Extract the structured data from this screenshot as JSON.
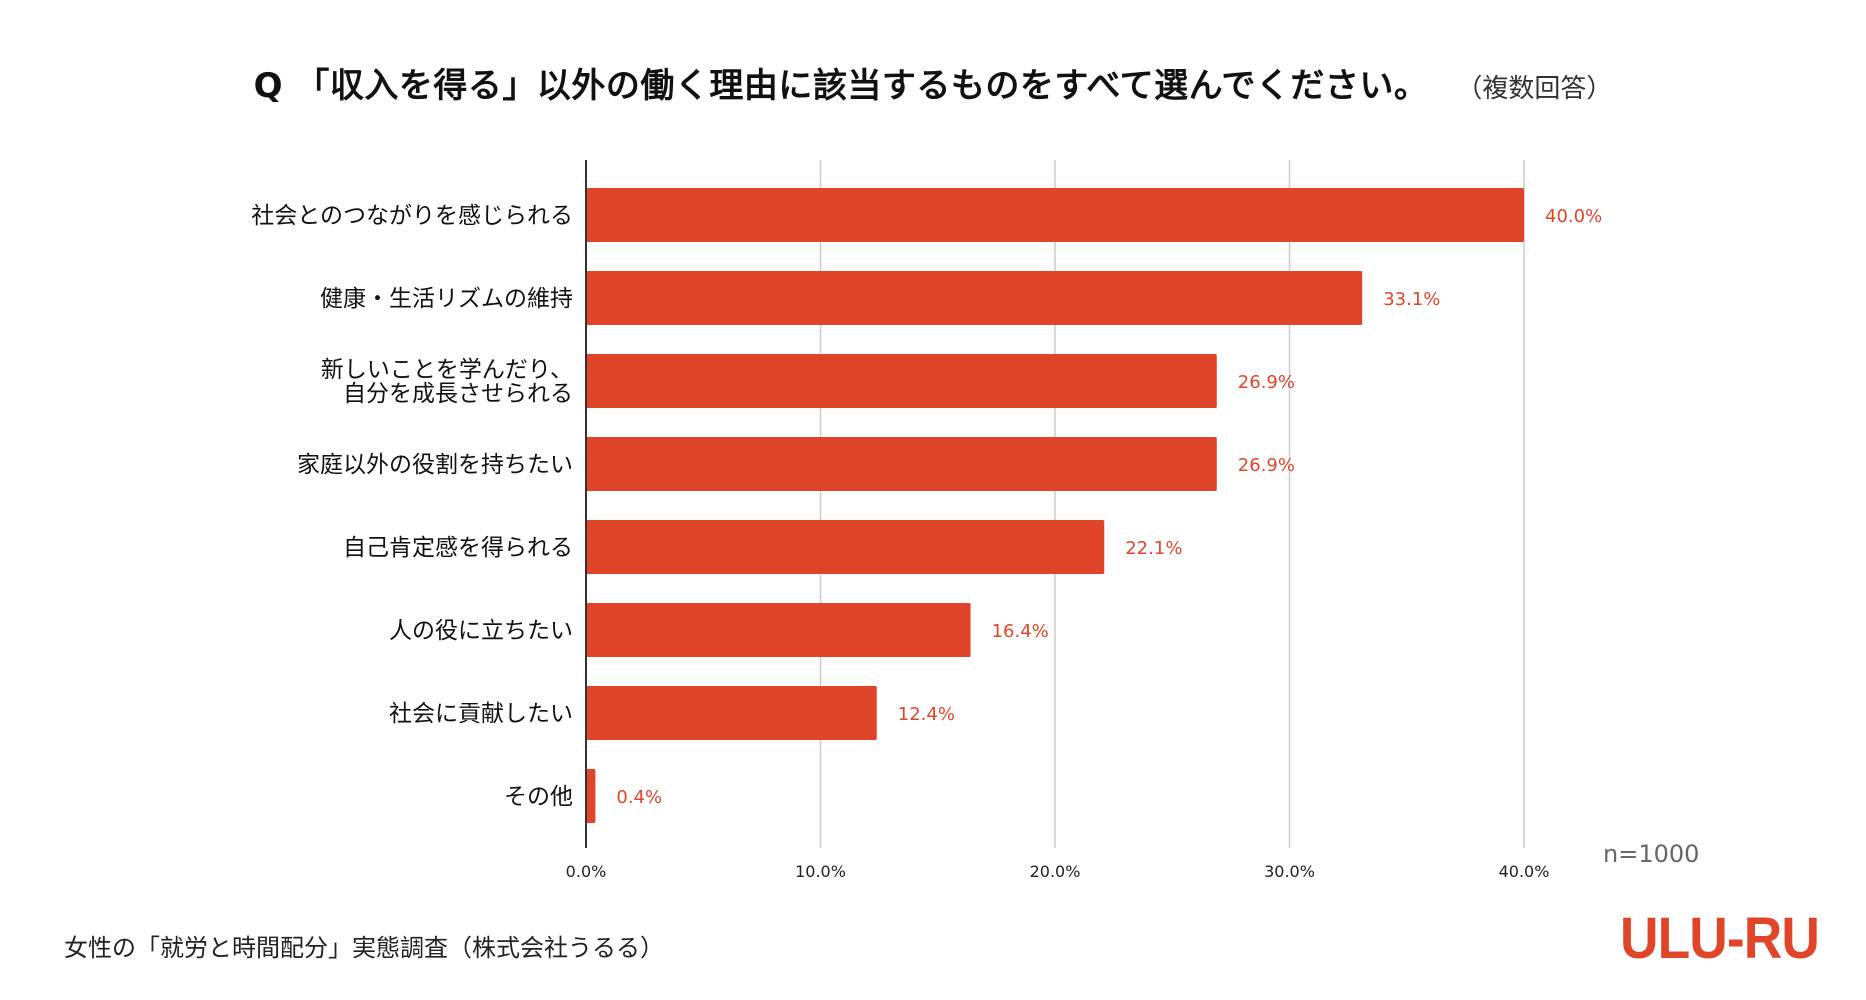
{
  "header": {
    "title": "Q 「収入を得る」以外の働く理由に該当するものをすべて選んでください。",
    "subtitle": "（複数回答）"
  },
  "footer": {
    "sample_size": "n=1000",
    "source": "女性の「就労と時間配分」実態調査（株式会社うるる）",
    "logo_text": "ULU-RU"
  },
  "colors": {
    "bar": "#e0452a",
    "value_label": "#e0452a",
    "grid": "#cccccc",
    "axis": "#333333"
  },
  "chart_data": {
    "type": "bar",
    "orientation": "horizontal",
    "categories": [
      [
        "社会とのつながりを感じられる"
      ],
      [
        "健康・生活リズムの維持"
      ],
      [
        "新しいことを学んだり、",
        "自分を成長させられる"
      ],
      [
        "家庭以外の役割を持ちたい"
      ],
      [
        "自己肯定感を得られる"
      ],
      [
        "人の役に立ちたい"
      ],
      [
        "社会に貢献したい"
      ],
      [
        "その他"
      ]
    ],
    "values": [
      40.0,
      33.1,
      26.9,
      26.9,
      22.1,
      16.4,
      12.4,
      0.4
    ],
    "value_labels": [
      "40.0%",
      "33.1%",
      "26.9%",
      "26.9%",
      "22.1%",
      "16.4%",
      "12.4%",
      "0.4%"
    ],
    "xlim": [
      0,
      40
    ],
    "xticks": [
      0,
      10,
      20,
      30,
      40
    ],
    "xtick_labels": [
      "0.0%",
      "10.0%",
      "20.0%",
      "30.0%",
      "40.0%"
    ],
    "grid": true
  }
}
